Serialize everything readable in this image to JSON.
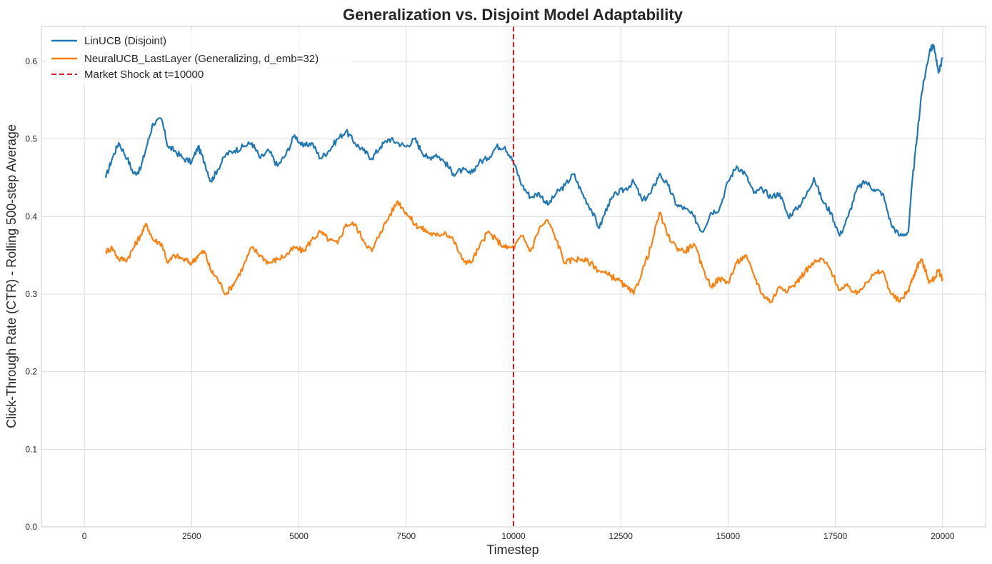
{
  "chart_data": {
    "type": "line",
    "title": "Generalization vs. Disjoint Model Adaptability",
    "xlabel": "Timestep",
    "ylabel": "Click-Through Rate (CTR) - Rolling 500-step Average",
    "xlim": [
      -1000,
      21000
    ],
    "ylim": [
      0.0,
      0.645
    ],
    "xticks": [
      "0",
      "2500",
      "5000",
      "7500",
      "10000",
      "12500",
      "15000",
      "17500",
      "20000"
    ],
    "xtick_values": [
      0,
      2500,
      5000,
      7500,
      10000,
      12500,
      15000,
      17500,
      20000
    ],
    "yticks": [
      "0.0",
      "0.1",
      "0.2",
      "0.3",
      "0.4",
      "0.5",
      "0.6"
    ],
    "ytick_values": [
      0.0,
      0.1,
      0.2,
      0.3,
      0.4,
      0.5,
      0.6
    ],
    "grid": true,
    "legend_position": "top-left",
    "annotations": [
      {
        "type": "vline",
        "x": 10000,
        "label": "Market Shock at t=10000",
        "color": "#e41a1c",
        "style": "dashed"
      }
    ],
    "series": [
      {
        "name": "LinUCB (Disjoint)",
        "color": "#1f77b4",
        "x": [
          500,
          650,
          800,
          1000,
          1150,
          1300,
          1450,
          1600,
          1800,
          1950,
          2100,
          2300,
          2500,
          2650,
          2800,
          2950,
          3100,
          3300,
          3500,
          3700,
          3900,
          4100,
          4300,
          4500,
          4700,
          4900,
          5100,
          5300,
          5500,
          5700,
          5900,
          6100,
          6300,
          6500,
          6700,
          6900,
          7100,
          7300,
          7500,
          7700,
          7850,
          8000,
          8200,
          8400,
          8600,
          8800,
          9000,
          9200,
          9400,
          9600,
          9800,
          10000,
          10200,
          10400,
          10600,
          10800,
          11000,
          11200,
          11400,
          11600,
          11800,
          12000,
          12200,
          12400,
          12600,
          12800,
          13000,
          13200,
          13400,
          13600,
          13800,
          14000,
          14200,
          14400,
          14600,
          14800,
          15000,
          15200,
          15400,
          15600,
          15800,
          16000,
          16200,
          16400,
          16600,
          16800,
          17000,
          17200,
          17400,
          17600,
          17800,
          18000,
          18200,
          18400,
          18600,
          18800,
          19000,
          19200,
          19300,
          19400,
          19500,
          19600,
          19700,
          19800,
          19900,
          20000
        ],
        "values": [
          0.45,
          0.475,
          0.495,
          0.475,
          0.455,
          0.46,
          0.49,
          0.52,
          0.525,
          0.49,
          0.485,
          0.475,
          0.47,
          0.49,
          0.47,
          0.445,
          0.46,
          0.48,
          0.485,
          0.49,
          0.495,
          0.475,
          0.485,
          0.465,
          0.48,
          0.505,
          0.49,
          0.495,
          0.475,
          0.485,
          0.5,
          0.51,
          0.495,
          0.485,
          0.475,
          0.49,
          0.5,
          0.495,
          0.49,
          0.5,
          0.485,
          0.475,
          0.48,
          0.47,
          0.455,
          0.46,
          0.455,
          0.47,
          0.475,
          0.49,
          0.49,
          0.47,
          0.44,
          0.425,
          0.43,
          0.415,
          0.43,
          0.44,
          0.455,
          0.43,
          0.41,
          0.385,
          0.415,
          0.43,
          0.435,
          0.445,
          0.42,
          0.43,
          0.455,
          0.44,
          0.415,
          0.41,
          0.4,
          0.38,
          0.405,
          0.41,
          0.445,
          0.465,
          0.455,
          0.43,
          0.435,
          0.425,
          0.43,
          0.4,
          0.41,
          0.425,
          0.45,
          0.42,
          0.405,
          0.375,
          0.4,
          0.435,
          0.445,
          0.435,
          0.43,
          0.39,
          0.375,
          0.38,
          0.45,
          0.5,
          0.555,
          0.585,
          0.615,
          0.62,
          0.585,
          0.605
        ]
      },
      {
        "name": "NeuralUCB_LastLayer (Generalizing, d_emb=32)",
        "color": "#ff7f0e",
        "x": [
          500,
          650,
          800,
          1000,
          1150,
          1300,
          1450,
          1600,
          1800,
          1950,
          2100,
          2300,
          2500,
          2650,
          2800,
          2950,
          3100,
          3300,
          3500,
          3700,
          3900,
          4100,
          4300,
          4500,
          4700,
          4900,
          5100,
          5300,
          5500,
          5700,
          5900,
          6100,
          6300,
          6500,
          6700,
          6900,
          7100,
          7300,
          7500,
          7700,
          7850,
          8000,
          8200,
          8400,
          8600,
          8800,
          9000,
          9200,
          9400,
          9600,
          9800,
          10000,
          10200,
          10400,
          10600,
          10800,
          11000,
          11200,
          11400,
          11600,
          11800,
          12000,
          12200,
          12400,
          12600,
          12800,
          13000,
          13200,
          13400,
          13600,
          13800,
          14000,
          14200,
          14400,
          14600,
          14800,
          15000,
          15200,
          15400,
          15600,
          15800,
          16000,
          16200,
          16400,
          16600,
          16800,
          17000,
          17200,
          17400,
          17600,
          17800,
          18000,
          18200,
          18400,
          18600,
          18800,
          19000,
          19200,
          19300,
          19400,
          19500,
          19600,
          19700,
          19800,
          19900,
          20000
        ],
        "values": [
          0.355,
          0.36,
          0.345,
          0.345,
          0.36,
          0.375,
          0.39,
          0.37,
          0.365,
          0.34,
          0.35,
          0.345,
          0.34,
          0.35,
          0.355,
          0.33,
          0.32,
          0.3,
          0.315,
          0.335,
          0.36,
          0.35,
          0.34,
          0.345,
          0.35,
          0.36,
          0.355,
          0.37,
          0.38,
          0.37,
          0.365,
          0.39,
          0.39,
          0.37,
          0.355,
          0.38,
          0.4,
          0.42,
          0.405,
          0.39,
          0.385,
          0.38,
          0.375,
          0.38,
          0.37,
          0.345,
          0.34,
          0.36,
          0.38,
          0.37,
          0.36,
          0.36,
          0.375,
          0.355,
          0.385,
          0.395,
          0.37,
          0.34,
          0.345,
          0.345,
          0.34,
          0.33,
          0.325,
          0.32,
          0.31,
          0.3,
          0.33,
          0.36,
          0.405,
          0.375,
          0.36,
          0.355,
          0.365,
          0.335,
          0.31,
          0.32,
          0.315,
          0.34,
          0.35,
          0.325,
          0.3,
          0.29,
          0.31,
          0.305,
          0.315,
          0.33,
          0.34,
          0.345,
          0.33,
          0.305,
          0.31,
          0.3,
          0.315,
          0.325,
          0.33,
          0.3,
          0.29,
          0.305,
          0.32,
          0.335,
          0.345,
          0.33,
          0.315,
          0.32,
          0.33,
          0.32
        ]
      }
    ]
  }
}
